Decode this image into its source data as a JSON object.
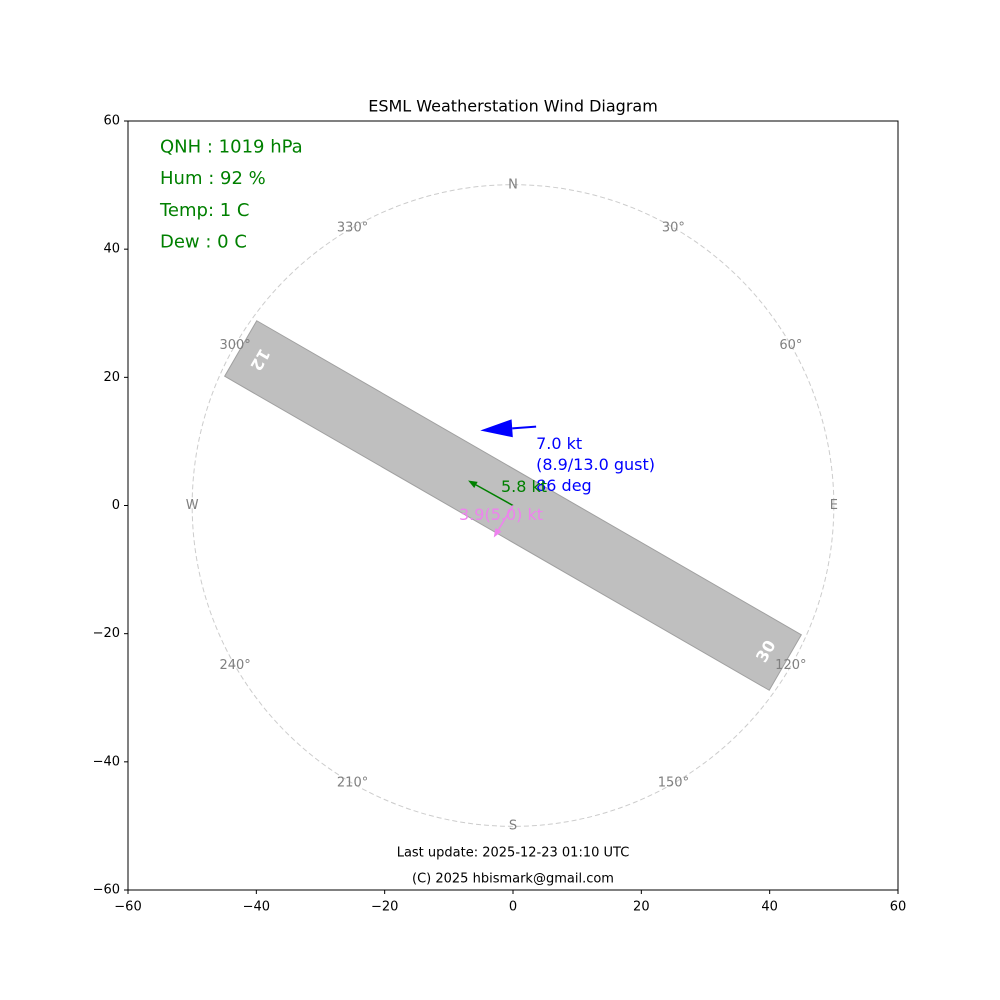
{
  "chart_data": {
    "type": "wind-diagram",
    "title": "ESML Weatherstation Wind Diagram",
    "xlim": [
      -60,
      60
    ],
    "ylim": [
      -60,
      60
    ],
    "xticks": [
      {
        "value": -60,
        "label": "−60"
      },
      {
        "value": -40,
        "label": "−40"
      },
      {
        "value": -20,
        "label": "−20"
      },
      0,
      20,
      40,
      60
    ],
    "yticks": [
      {
        "value": -60,
        "label": "−60"
      },
      {
        "value": -40,
        "label": "−40"
      },
      {
        "value": -20,
        "label": "−20"
      },
      0,
      20,
      40,
      60
    ],
    "info": [
      "QNH : 1019 hPa",
      "Hum : 92 %",
      "Temp: 1 C",
      "Dew : 0 C"
    ],
    "info_color": "#008000",
    "compass": {
      "radius": 50,
      "color": "#cccccc",
      "label_color": "#808080",
      "labels": [
        "N",
        "30°",
        "60°",
        "E",
        "120°",
        "150°",
        "S",
        "210°",
        "240°",
        "W",
        "300°",
        "330°"
      ],
      "bearings": [
        0,
        30,
        60,
        90,
        120,
        150,
        180,
        210,
        240,
        270,
        300,
        330
      ]
    },
    "runway": {
      "labels": [
        "12",
        "30"
      ],
      "heading": 120,
      "length": 98,
      "width": 10,
      "color": "#bfbfbf"
    },
    "arrows": [
      {
        "color": "#0000ff",
        "x": [
          3.6,
          -5.1
        ],
        "y": [
          12.3,
          11.7
        ],
        "labels": [
          "7.0 kt",
          "(8.9/13.0 gust)",
          "86 deg"
        ]
      },
      {
        "color": "#008000",
        "x": [
          0,
          -7
        ],
        "y": [
          0,
          3.9
        ],
        "labels": [
          "5.8 kt"
        ]
      },
      {
        "color": "#ee82ee",
        "x": [
          0,
          -3
        ],
        "y": [
          0,
          -5
        ],
        "labels": [
          "3.9(5.0) kt"
        ]
      }
    ],
    "footer": [
      "Last update: 2025-12-23 01:10 UTC",
      "(C) 2025 hbismark@gmail.com"
    ]
  }
}
